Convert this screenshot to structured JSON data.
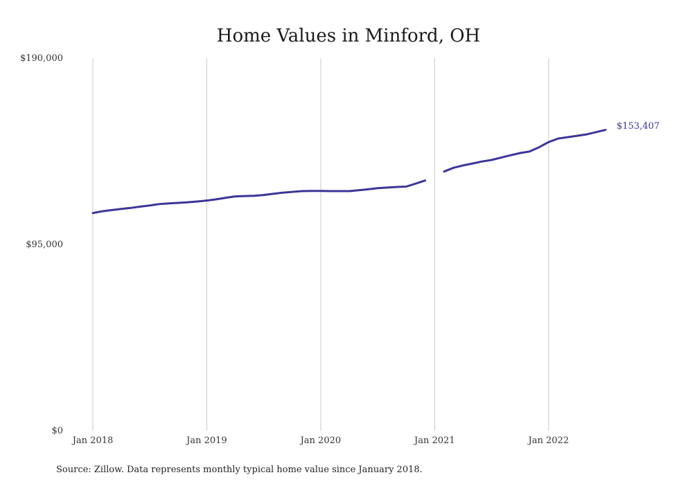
{
  "chart_data": {
    "type": "line",
    "title": "Home Values in Minford, OH",
    "xlabel": "",
    "ylabel": "",
    "x_range": [
      "2018-01",
      "2022-07"
    ],
    "ylim": [
      0,
      190000
    ],
    "grid": {
      "vertical": true,
      "horizontal": false
    },
    "y_ticks": [
      {
        "value": 0,
        "label": "$0"
      },
      {
        "value": 95000,
        "label": "$95,000"
      },
      {
        "value": 190000,
        "label": "$190,000"
      }
    ],
    "x_ticks": [
      {
        "value": "2018-01",
        "label": "Jan 2018"
      },
      {
        "value": "2019-01",
        "label": "Jan 2019"
      },
      {
        "value": "2020-01",
        "label": "Jan 2020"
      },
      {
        "value": "2021-01",
        "label": "Jan 2021"
      },
      {
        "value": "2022-01",
        "label": "Jan 2022"
      }
    ],
    "series": [
      {
        "color": "#3b3599",
        "segments": [
          [
            {
              "x": "2018-01",
              "y": 111000
            },
            {
              "x": "2018-02",
              "y": 111900
            },
            {
              "x": "2018-03",
              "y": 112500
            },
            {
              "x": "2018-04",
              "y": 113100
            },
            {
              "x": "2018-05",
              "y": 113600
            },
            {
              "x": "2018-06",
              "y": 114300
            },
            {
              "x": "2018-07",
              "y": 114900
            },
            {
              "x": "2018-08",
              "y": 115600
            },
            {
              "x": "2018-09",
              "y": 115900
            },
            {
              "x": "2018-10",
              "y": 116200
            },
            {
              "x": "2018-11",
              "y": 116500
            },
            {
              "x": "2018-12",
              "y": 116900
            },
            {
              "x": "2019-01",
              "y": 117400
            },
            {
              "x": "2019-02",
              "y": 118000
            },
            {
              "x": "2019-03",
              "y": 118800
            },
            {
              "x": "2019-04",
              "y": 119500
            },
            {
              "x": "2019-05",
              "y": 119700
            },
            {
              "x": "2019-06",
              "y": 119800
            },
            {
              "x": "2019-07",
              "y": 120200
            },
            {
              "x": "2019-08",
              "y": 120800
            },
            {
              "x": "2019-09",
              "y": 121400
            },
            {
              "x": "2019-10",
              "y": 121800
            },
            {
              "x": "2019-11",
              "y": 122200
            },
            {
              "x": "2019-12",
              "y": 122300
            },
            {
              "x": "2020-01",
              "y": 122300
            },
            {
              "x": "2020-02",
              "y": 122200
            },
            {
              "x": "2020-03",
              "y": 122200
            },
            {
              "x": "2020-04",
              "y": 122200
            },
            {
              "x": "2020-05",
              "y": 122600
            },
            {
              "x": "2020-06",
              "y": 123100
            },
            {
              "x": "2020-07",
              "y": 123700
            },
            {
              "x": "2020-08",
              "y": 124000
            },
            {
              "x": "2020-09",
              "y": 124300
            },
            {
              "x": "2020-10",
              "y": 124500
            },
            {
              "x": "2020-11",
              "y": 126000
            },
            {
              "x": "2020-12",
              "y": 127600
            }
          ],
          [
            {
              "x": "2021-02",
              "y": 132200
            },
            {
              "x": "2021-03",
              "y": 134100
            },
            {
              "x": "2021-04",
              "y": 135300
            },
            {
              "x": "2021-05",
              "y": 136300
            },
            {
              "x": "2021-06",
              "y": 137300
            },
            {
              "x": "2021-07",
              "y": 138100
            },
            {
              "x": "2021-08",
              "y": 139300
            },
            {
              "x": "2021-09",
              "y": 140500
            },
            {
              "x": "2021-10",
              "y": 141600
            },
            {
              "x": "2021-11",
              "y": 142400
            },
            {
              "x": "2021-12",
              "y": 144600
            },
            {
              "x": "2022-01",
              "y": 147200
            },
            {
              "x": "2022-02",
              "y": 149000
            },
            {
              "x": "2022-03",
              "y": 149700
            },
            {
              "x": "2022-04",
              "y": 150400
            },
            {
              "x": "2022-05",
              "y": 151100
            },
            {
              "x": "2022-06",
              "y": 152300
            },
            {
              "x": "2022-07",
              "y": 153407
            }
          ]
        ],
        "end_label": "$153,407"
      }
    ],
    "source": "Source: Zillow. Data represents monthly typical home value since January 2018."
  }
}
